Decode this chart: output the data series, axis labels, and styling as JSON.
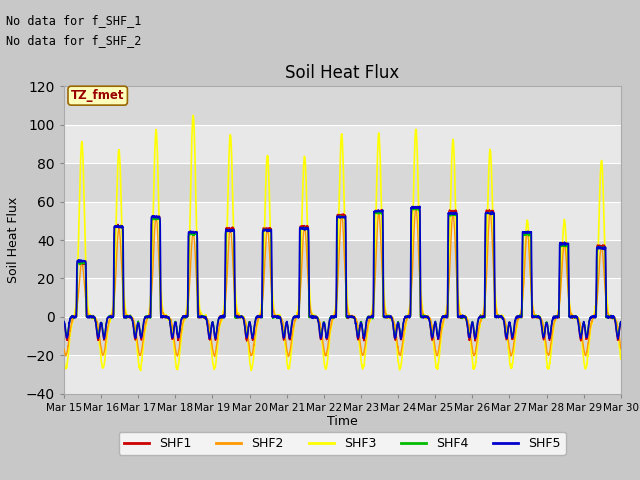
{
  "title": "Soil Heat Flux",
  "ylabel": "Soil Heat Flux",
  "xlabel": "Time",
  "ylim": [
    -40,
    120
  ],
  "yticks": [
    -40,
    -20,
    0,
    20,
    40,
    60,
    80,
    100,
    120
  ],
  "colors": {
    "SHF1": "#cc0000",
    "SHF2": "#ff9900",
    "SHF3": "#ffff00",
    "SHF4": "#00bb00",
    "SHF5": "#0000cc"
  },
  "legend_labels": [
    "SHF1",
    "SHF2",
    "SHF3",
    "SHF4",
    "SHF5"
  ],
  "no_data_text_1": "No data for f_SHF_1",
  "no_data_text_2": "No data for f_SHF_2",
  "tz_label": "TZ_fmet",
  "x_tick_labels": [
    "Mar 15",
    "Mar 16",
    "Mar 17",
    "Mar 18",
    "Mar 19",
    "Mar 20",
    "Mar 21",
    "Mar 22",
    "Mar 23",
    "Mar 24",
    "Mar 25",
    "Mar 26",
    "Mar 27",
    "Mar 28",
    "Mar 29",
    "Mar 30"
  ],
  "fig_bg": "#c8c8c8",
  "plot_bg": "#f0f0f0",
  "band_colors": [
    "#e8e8e8",
    "#d8d8d8"
  ],
  "grid_color": "#ffffff"
}
